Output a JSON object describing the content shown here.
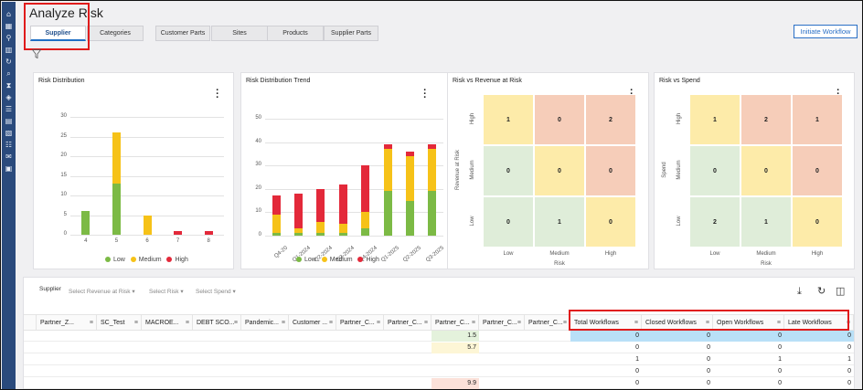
{
  "page": {
    "title": "Analyze Risk",
    "initiate_label": "Initiate Workflow"
  },
  "sidebar": {
    "icons": [
      "home-icon",
      "calendar-icon",
      "org-chart-icon",
      "factory-icon",
      "refresh-icon",
      "search-icon",
      "hourglass-icon",
      "shield-icon",
      "list-icon",
      "grid-icon",
      "chart-icon",
      "people-icon",
      "megaphone-icon",
      "building-icon"
    ]
  },
  "tabs": [
    {
      "label": "Supplier",
      "active": true
    },
    {
      "label": "Categories"
    },
    {
      "label": "Customer Parts"
    },
    {
      "label": "Sites"
    },
    {
      "label": "Products"
    },
    {
      "label": "Supplier Parts"
    }
  ],
  "colors": {
    "low": "#7cba45",
    "medium": "#f6c218",
    "high": "#e3293a",
    "accent": "#2a6fc5",
    "heat_low": "#dfedd9",
    "heat_med": "#fdeba9",
    "heat_high": "#f6cdb9"
  },
  "legend": {
    "low": "Low",
    "medium": "Medium",
    "high": "High"
  },
  "risk_distribution": {
    "title": "Risk Distribution",
    "chart_data": {
      "type": "bar",
      "stacked": true,
      "categories": [
        "4",
        "5",
        "6",
        "7",
        "8"
      ],
      "series": [
        {
          "name": "Low",
          "values": [
            6,
            13,
            0,
            0,
            0
          ]
        },
        {
          "name": "Medium",
          "values": [
            0,
            13,
            5,
            0,
            0
          ]
        },
        {
          "name": "High",
          "values": [
            0,
            0,
            0,
            1,
            1
          ]
        }
      ],
      "ylim": [
        0,
        30
      ],
      "yticks": [
        0,
        5,
        10,
        15,
        20,
        25,
        30
      ]
    }
  },
  "risk_trend": {
    "title": "Risk Distribution Trend",
    "chart_data": {
      "type": "bar",
      "stacked": true,
      "categories": [
        "Q4-20",
        "Q1-2024",
        "Q2-2024",
        "Q3-2024",
        "Q4-2024",
        "Q1-2025",
        "Q2-2025",
        "Q3-2025"
      ],
      "series": [
        {
          "name": "Low",
          "values": [
            1,
            1,
            1,
            1,
            3,
            19,
            15,
            19
          ]
        },
        {
          "name": "Medium",
          "values": [
            8,
            2,
            5,
            4,
            7,
            18,
            19,
            18
          ]
        },
        {
          "name": "High",
          "values": [
            8,
            15,
            14,
            17,
            20,
            2,
            2,
            2
          ]
        }
      ],
      "ylim": [
        0,
        50
      ],
      "yticks": [
        0,
        10,
        20,
        30,
        40,
        50
      ]
    }
  },
  "risk_vs_revenue": {
    "title": "Risk vs Revenue at Risk",
    "chart_data": {
      "type": "heatmap",
      "x_labels": [
        "Low",
        "Medium",
        "High"
      ],
      "y_labels": [
        "High",
        "Medium",
        "Low"
      ],
      "values": [
        [
          1,
          0,
          2
        ],
        [
          0,
          0,
          0
        ],
        [
          0,
          1,
          0
        ]
      ],
      "xlabel": "Risk",
      "ylabel": "Revenue at Risk"
    }
  },
  "risk_vs_spend": {
    "title": "Risk vs Spend",
    "chart_data": {
      "type": "heatmap",
      "x_labels": [
        "Low",
        "Medium",
        "High"
      ],
      "y_labels": [
        "High",
        "Medium",
        "Low"
      ],
      "values": [
        [
          1,
          2,
          1
        ],
        [
          0,
          0,
          0
        ],
        [
          2,
          1,
          0
        ]
      ],
      "xlabel": "Risk",
      "ylabel": "Spend"
    }
  },
  "grid": {
    "label": "Supplier",
    "selectors": [
      "Select Revenue at Risk",
      "Select Risk",
      "Select Spend"
    ],
    "columns": [
      "",
      "Partner_Z...",
      "SC_Test",
      "MACROE...",
      "DEBT SCO...",
      "Pandemic...",
      "Customer ...",
      "Partner_C...",
      "Partner_C...",
      "Partner_C...",
      "Partner_C...",
      "Partner_C...",
      "Total Workflows",
      "Closed Workflows",
      "Open Workflows",
      "Late Workflows"
    ],
    "rows": [
      {
        "partner_c": "1.5",
        "total": "0",
        "closed": "0",
        "open": "0",
        "late": "0"
      },
      {
        "partner_c": "5.7",
        "total": "0",
        "closed": "0",
        "open": "0",
        "late": "0"
      },
      {
        "partner_c": "",
        "total": "1",
        "closed": "0",
        "open": "1",
        "late": "1"
      },
      {
        "partner_c": "",
        "total": "0",
        "closed": "0",
        "open": "0",
        "late": "0"
      },
      {
        "partner_c": "9.9",
        "total": "0",
        "closed": "0",
        "open": "0",
        "late": "0"
      }
    ]
  }
}
